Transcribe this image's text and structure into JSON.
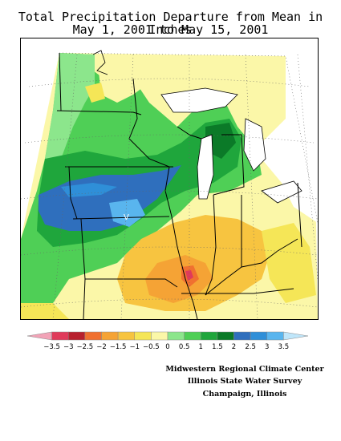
{
  "title": {
    "line1": "Total Precipitation Departure from Mean in Inches",
    "line2": "May 1, 2001 to May 15, 2001"
  },
  "legend": {
    "tick_labels": [
      "−3.5",
      "−3",
      "−2.5",
      "−2",
      "−1.5",
      "−1",
      "−0.5",
      "0",
      "0.5",
      "1",
      "1.5",
      "2",
      "2.5",
      "3",
      "3.5"
    ],
    "colors": [
      "#f2a3b7",
      "#e03a5a",
      "#b8202e",
      "#f07030",
      "#f5a335",
      "#f7c440",
      "#f5e657",
      "#fbf7a8",
      "#8ce68c",
      "#4fcf56",
      "#1fa63c",
      "#0b7a28",
      "#2f6fbd",
      "#2f8fd8",
      "#59b5ee",
      "#bfe6fa"
    ],
    "unit": "inches"
  },
  "credits": {
    "line1": "Midwestern Regional Climate Center",
    "line2": "Illinois State Water Survey",
    "line3": "Champaign, Illinois"
  },
  "map": {
    "region": "Midwest United States",
    "field": "precipitation departure from mean",
    "marker_label": "V"
  }
}
